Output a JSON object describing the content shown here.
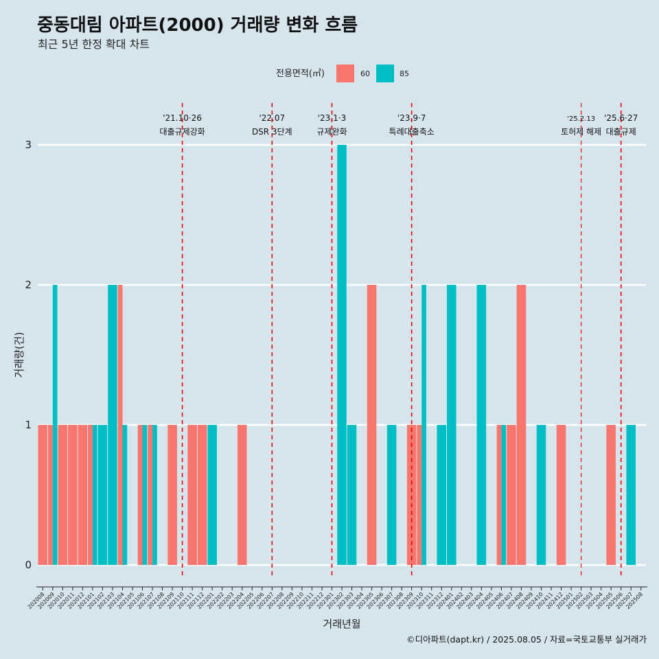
{
  "chart_data": {
    "type": "bar",
    "title": "중동대림 아파트(2000) 거래량 변화 흐름",
    "subtitle": "최근 5년 한정 확대 차트",
    "xlabel": "거래년월",
    "ylabel": "거래량(건)",
    "ylim": [
      0,
      3
    ],
    "yticks": [
      0,
      1,
      2,
      3
    ],
    "legend": {
      "title": "전용면적(㎡)",
      "position": "top",
      "items": [
        {
          "name": "60",
          "color": "#f8766d"
        },
        {
          "name": "85",
          "color": "#00bfc4"
        }
      ]
    },
    "categories": [
      "202008",
      "202009",
      "202010",
      "202011",
      "202012",
      "202101",
      "202102",
      "202103",
      "202104",
      "202105",
      "202106",
      "202107",
      "202108",
      "202109",
      "202110",
      "202111",
      "202112",
      "202201",
      "202202",
      "202203",
      "202204",
      "202205",
      "202206",
      "202207",
      "202208",
      "202209",
      "202210",
      "202211",
      "202212",
      "202301",
      "202302",
      "202303",
      "202304",
      "202305",
      "202306",
      "202307",
      "202308",
      "202309",
      "202310",
      "202311",
      "202312",
      "202401",
      "202402",
      "202403",
      "202404",
      "202405",
      "202406",
      "202407",
      "202408",
      "202409",
      "202410",
      "202411",
      "202412",
      "202501",
      "202502",
      "202503",
      "202504",
      "202505",
      "202506",
      "202507",
      "202508"
    ],
    "series": [
      {
        "name": "60",
        "color": "#f8766d",
        "values": [
          1,
          1,
          1,
          1,
          1,
          1,
          0,
          0,
          2,
          0,
          1,
          1,
          0,
          1,
          0,
          1,
          1,
          0,
          0,
          0,
          1,
          0,
          0,
          0,
          0,
          0,
          0,
          0,
          0,
          0,
          0,
          0,
          0,
          2,
          0,
          0,
          0,
          1,
          1,
          0,
          0,
          0,
          0,
          0,
          0,
          0,
          1,
          1,
          2,
          0,
          0,
          0,
          1,
          0,
          0,
          0,
          0,
          1,
          0,
          0,
          0
        ]
      },
      {
        "name": "85",
        "color": "#00bfc4",
        "values": [
          0,
          2,
          0,
          0,
          0,
          1,
          1,
          2,
          1,
          0,
          1,
          1,
          0,
          0,
          0,
          0,
          0,
          1,
          0,
          0,
          0,
          0,
          0,
          0,
          0,
          0,
          0,
          0,
          0,
          0,
          3,
          1,
          0,
          0,
          0,
          1,
          0,
          0,
          2,
          0,
          1,
          2,
          0,
          0,
          2,
          0,
          1,
          0,
          0,
          0,
          1,
          0,
          0,
          0,
          0,
          0,
          0,
          0,
          0,
          1,
          0
        ]
      }
    ],
    "annotations": [
      {
        "x": 14.5,
        "line1": "'21.10·26",
        "line2": "대출규제강화"
      },
      {
        "x": 23.5,
        "line1": "'22.07",
        "line2": "DSR 3단계"
      },
      {
        "x": 29.5,
        "line1": "'23.1·3",
        "line2": "규제완화"
      },
      {
        "x": 37.5,
        "line1": "'23.9·7",
        "line2": "특례대출축소"
      },
      {
        "x": 54.5,
        "line1": "'25.2.13",
        "line2": "토허제 해제",
        "small": true
      },
      {
        "x": 58.5,
        "line1": "'25.6·27",
        "line2": "대출규제"
      }
    ],
    "grid": true
  },
  "caption": "©디아파트(dapt.kr) / 2025.08.05 / 자료=국토교통부 실거래가"
}
